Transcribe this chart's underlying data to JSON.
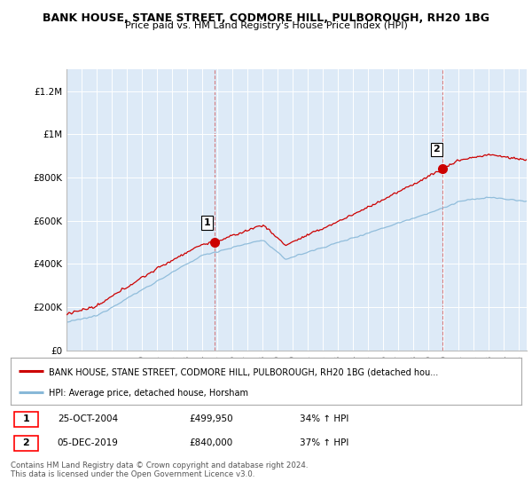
{
  "title": "BANK HOUSE, STANE STREET, CODMORE HILL, PULBOROUGH, RH20 1BG",
  "subtitle": "Price paid vs. HM Land Registry's House Price Index (HPI)",
  "bg_color": "#ddeaf7",
  "red_line_color": "#cc0000",
  "blue_line_color": "#88b8d8",
  "ylim": [
    0,
    1300000
  ],
  "yticks": [
    0,
    200000,
    400000,
    600000,
    800000,
    1000000,
    1200000
  ],
  "ytick_labels": [
    "£0",
    "£200K",
    "£400K",
    "£600K",
    "£800K",
    "£1M",
    "£1.2M"
  ],
  "sale1_x": 2004.82,
  "sale1_y": 499950,
  "sale2_x": 2019.92,
  "sale2_y": 840000,
  "sale1_date": "25-OCT-2004",
  "sale1_price": "£499,950",
  "sale1_hpi": "34% ↑ HPI",
  "sale2_date": "05-DEC-2019",
  "sale2_price": "£840,000",
  "sale2_hpi": "37% ↑ HPI",
  "legend_line1": "BANK HOUSE, STANE STREET, CODMORE HILL, PULBOROUGH, RH20 1BG (detached hou...",
  "legend_line2": "HPI: Average price, detached house, Horsham",
  "footer": "Contains HM Land Registry data © Crown copyright and database right 2024.\nThis data is licensed under the Open Government Licence v3.0.",
  "xmin": 1995,
  "xmax": 2025.5
}
